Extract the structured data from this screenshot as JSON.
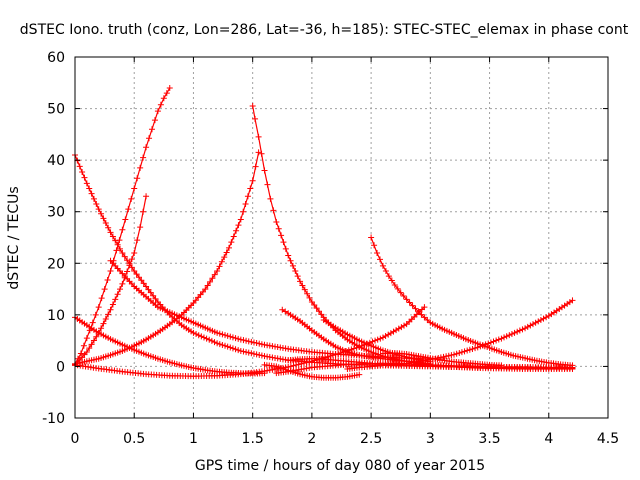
{
  "chart_data": {
    "type": "scatter",
    "title": "dSTEC Iono. truth (conz, Lon=286, Lat=-36, h=185): STEC-STEC_elemax in phase cont",
    "xlabel": "GPS time / hours of day 080 of year 2015",
    "ylabel": "dSTEC  / TECUs",
    "xlim": [
      0,
      4.5
    ],
    "ylim": [
      -10,
      60
    ],
    "xticks": [
      "0",
      "0.5",
      "1",
      "1.5",
      "2",
      "2.5",
      "3",
      "3.5",
      "4",
      "4.5"
    ],
    "yticks": [
      "-10",
      "0",
      "10",
      "20",
      "30",
      "40",
      "50",
      "60"
    ],
    "grid": true,
    "marker": "+",
    "color": "#ff0000",
    "series": [
      {
        "x": [
          0.0,
          0.05,
          0.1,
          0.15,
          0.2,
          0.25,
          0.3,
          0.35,
          0.4,
          0.45,
          0.5,
          0.55,
          0.6,
          0.65,
          0.7,
          0.75,
          0.8
        ],
        "y": [
          0.5,
          2.5,
          5.5,
          8.5,
          11.5,
          15,
          18.5,
          22.5,
          26.5,
          30.5,
          34.5,
          38.5,
          42.5,
          46,
          49.5,
          52,
          54
        ]
      },
      {
        "x": [
          0.0,
          0.1,
          0.2,
          0.3,
          0.4,
          0.5,
          0.6,
          0.7,
          0.8,
          0.9,
          1.0,
          1.2,
          1.4,
          1.6,
          1.8,
          2.0,
          2.2,
          2.4,
          2.6,
          2.8,
          3.0,
          3.2,
          3.4,
          3.6,
          3.8,
          4.0,
          4.2
        ],
        "y": [
          41,
          35.5,
          30.5,
          26,
          22,
          18.5,
          15.5,
          12.5,
          10,
          8,
          6.5,
          4.5,
          3,
          2,
          1.2,
          0.8,
          0.5,
          0.3,
          0.2,
          0.1,
          0.0,
          -0.1,
          -0.2,
          -0.2,
          -0.3,
          -0.3,
          -0.3
        ]
      },
      {
        "x": [
          0.0,
          0.1,
          0.2,
          0.3,
          0.4,
          0.5,
          0.6,
          0.7,
          0.8,
          0.9,
          1.0,
          1.1,
          1.2,
          1.3,
          1.4,
          1.5,
          1.55
        ],
        "y": [
          0.5,
          1,
          1.5,
          2.2,
          3,
          4,
          5.2,
          6.6,
          8.2,
          10,
          12.3,
          15,
          18.5,
          23,
          28.5,
          36,
          41.5
        ]
      },
      {
        "x": [
          0.0,
          0.1,
          0.2,
          0.3,
          0.4,
          0.5,
          0.6,
          0.7,
          0.8,
          0.9,
          1.0,
          1.1,
          1.2,
          1.3,
          1.4,
          1.5,
          1.6
        ],
        "y": [
          9.5,
          8,
          6.5,
          5.3,
          4.2,
          3.2,
          2.3,
          1.5,
          0.8,
          0.2,
          -0.3,
          -0.7,
          -1.0,
          -1.2,
          -1.3,
          -1.4,
          -1.3
        ]
      },
      {
        "x": [
          0.0,
          0.2,
          0.4,
          0.6,
          0.8,
          1.0,
          1.2,
          1.4,
          1.6,
          1.8,
          2.0,
          2.2,
          2.4,
          2.6,
          2.8,
          2.95
        ],
        "y": [
          0.3,
          -0.4,
          -1.0,
          -1.5,
          -1.8,
          -1.9,
          -1.8,
          -1.5,
          -0.9,
          -0.1,
          1,
          2.3,
          3.8,
          5.6,
          8.2,
          11.5
        ]
      },
      {
        "x": [
          0.0,
          0.1,
          0.2,
          0.3,
          0.4,
          0.5,
          0.55,
          0.6
        ],
        "y": [
          0.2,
          2.8,
          6.5,
          11,
          16,
          22,
          27,
          33
        ]
      },
      {
        "x": [
          0.3,
          0.4,
          0.5,
          0.6,
          0.7,
          0.8,
          0.9,
          1.0,
          1.1,
          1.2,
          1.4,
          1.6,
          1.8,
          2.0,
          2.2,
          2.4,
          2.6,
          2.8,
          3.0
        ],
        "y": [
          20.5,
          18,
          15.5,
          13.5,
          11.5,
          10.5,
          9.5,
          8.5,
          7.5,
          6.5,
          5.2,
          4.2,
          3.4,
          2.8,
          2.4,
          2.1,
          1.8,
          1.6,
          1.4
        ]
      },
      {
        "x": [
          1.5,
          1.52,
          1.55,
          1.6,
          1.65,
          1.7,
          1.8,
          1.9,
          2.0,
          2.1,
          2.2,
          2.3,
          2.4,
          2.5,
          2.6,
          2.7,
          2.8,
          2.9,
          3.0,
          3.2,
          3.4,
          3.6,
          3.8,
          4.0,
          4.2
        ],
        "y": [
          50.5,
          48,
          44.5,
          38,
          32.5,
          28,
          21.5,
          16.5,
          12.5,
          9.5,
          7,
          5.2,
          3.8,
          2.8,
          2,
          1.4,
          1,
          0.6,
          0.3,
          -0.1,
          -0.3,
          -0.4,
          -0.5,
          -0.5,
          -0.5
        ]
      },
      {
        "x": [
          1.75,
          1.8,
          1.9,
          2.0,
          2.1,
          2.2,
          2.3,
          2.4,
          2.5,
          2.6,
          2.7,
          2.8,
          2.9,
          3.0
        ],
        "y": [
          11,
          10.3,
          8.8,
          7,
          5.3,
          3.8,
          2.8,
          2.2,
          1.8,
          1.5,
          1.2,
          1.0,
          0.8,
          0.5
        ]
      },
      {
        "x": [
          2.1,
          2.2,
          2.3,
          2.4,
          2.5,
          2.6,
          2.7,
          2.8,
          2.9,
          3.0
        ],
        "y": [
          9,
          7.5,
          6.2,
          5,
          4,
          3.1,
          2.4,
          1.8,
          1.3,
          0.9
        ]
      },
      {
        "x": [
          2.5,
          2.55,
          2.6,
          2.65,
          2.7,
          2.75,
          2.8,
          2.85,
          2.9,
          2.95,
          3.0,
          3.1,
          3.2,
          3.3,
          3.4,
          3.5,
          3.6,
          3.7,
          3.8,
          3.9,
          4.0,
          4.1,
          4.2
        ],
        "y": [
          25,
          22,
          19.5,
          17.5,
          15.8,
          14.3,
          13,
          11.8,
          10.6,
          9.5,
          8.5,
          7.3,
          6.3,
          5.3,
          4.4,
          3.6,
          2.8,
          2.1,
          1.6,
          1.1,
          0.7,
          0.4,
          0.2
        ]
      },
      {
        "x": [
          1.6,
          1.7,
          1.8,
          1.9,
          2.0,
          2.1,
          2.2,
          2.3,
          2.4
        ],
        "y": [
          0.3,
          0.0,
          -0.8,
          -1.5,
          -2.0,
          -2.2,
          -2.2,
          -2.0,
          -1.6
        ]
      },
      {
        "x": [
          1.8,
          1.9,
          2.0,
          2.1,
          2.2,
          2.4,
          2.6,
          2.8,
          3.0,
          3.2,
          3.4,
          3.6,
          3.8,
          4.0,
          4.2
        ],
        "y": [
          1.2,
          1.4,
          1.5,
          1.4,
          1.2,
          0.8,
          0.4,
          0.2,
          0.1,
          -0.1,
          -0.1,
          -0.2,
          -0.2,
          -0.2,
          -0.3
        ]
      },
      {
        "x": [
          1.7,
          1.8,
          2.0,
          2.2,
          2.4,
          2.6,
          2.8,
          3.0,
          3.2,
          3.4,
          3.6,
          3.8,
          4.0,
          4.2
        ],
        "y": [
          -1.3,
          -1.0,
          -0.2,
          0.2,
          0.5,
          0.6,
          0.5,
          0.3,
          0.1,
          0.0,
          -0.1,
          -0.1,
          -0.2,
          -0.2
        ]
      },
      {
        "x": [
          2.3,
          2.4,
          2.6,
          2.8,
          3.0,
          3.2,
          3.4,
          3.6,
          3.8,
          4.0,
          4.2
        ],
        "y": [
          -0.5,
          -0.2,
          0.2,
          0.6,
          1.3,
          2.3,
          3.7,
          5.4,
          7.4,
          9.8,
          12.8
        ]
      },
      {
        "x": [
          2.6,
          2.7,
          2.8,
          2.9,
          3.0,
          3.1,
          3.2,
          3.3,
          3.4,
          3.5,
          3.6
        ],
        "y": [
          2.5,
          2.6,
          2.4,
          2.0,
          1.6,
          1.2,
          0.9,
          0.7,
          0.5,
          0.3,
          0.2
        ]
      }
    ]
  }
}
